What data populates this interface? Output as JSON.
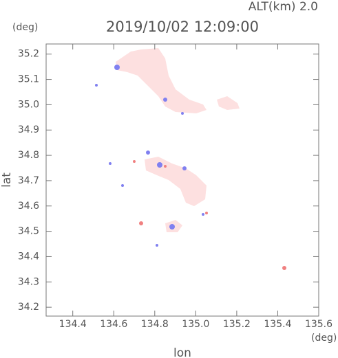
{
  "chart_data": {
    "type": "map",
    "title": "2019/10/02 12:09:00",
    "subtitle": "ALT(km) 2.0",
    "x_label": "lon",
    "y_label": "lat",
    "x_unit": "(deg)",
    "y_unit": "(deg)",
    "xlim": [
      134.27,
      135.6
    ],
    "ylim": [
      34.165,
      35.24
    ],
    "xticks": [
      134.4,
      134.6,
      134.8,
      {
        "value": 135.0,
        "label": "135.0"
      },
      135.2,
      135.4,
      135.6
    ],
    "yticks": [
      34.2,
      34.3,
      34.4,
      34.5,
      34.6,
      34.7,
      34.8,
      34.9,
      {
        "value": 35.0,
        "label": "35.0"
      },
      35.1,
      35.2
    ]
  }
}
